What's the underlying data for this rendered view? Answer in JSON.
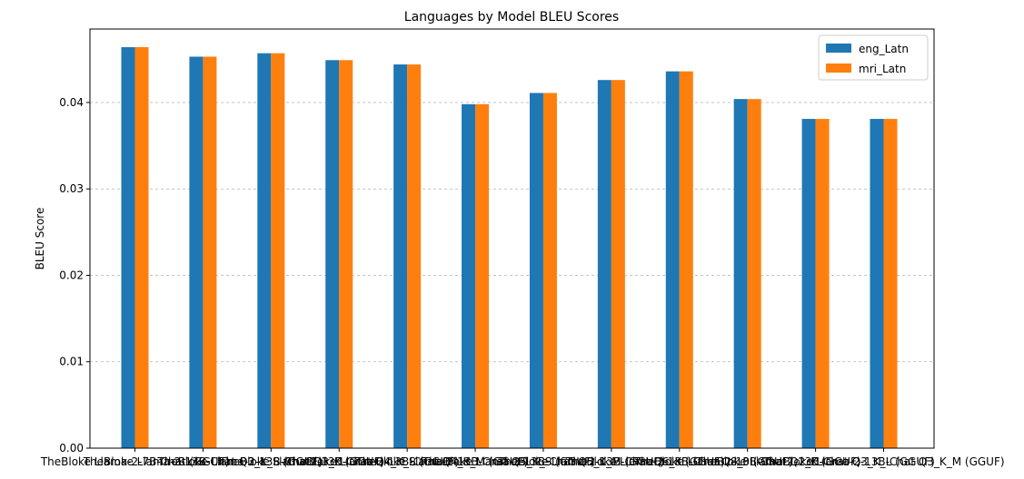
{
  "chart_data": {
    "type": "bar",
    "title": "Languages by Model BLEU Scores",
    "xlabel": "",
    "ylabel": "BLEU Score",
    "ylim": [
      0,
      0.0485
    ],
    "yticks": [
      0.0,
      0.01,
      0.02,
      0.03,
      0.04
    ],
    "ytick_labels": [
      "0.00",
      "0.01",
      "0.02",
      "0.03",
      "0.04"
    ],
    "grid": "y-dashed",
    "legend_position": "top-right",
    "categories": [
      "TheBloke Llama-2-7B-Chat (GGUF)",
      "TheBloke Llama-2-13B-Chat Q3_K_S (GGUF)",
      "TheBloke Llama-2-13B-Chat Q3_K (GGUF)",
      "TheBloke Llama-2-13B-Chat Q4_K_S (GGUF)",
      "TheBloke Llama-2-13B-Chat Q4_K_M (GGUF)",
      "TheBloke Llama-2-13B-Chat Q5_K_S (GGUF)",
      "TheBloke Llama-2-13B-Chat Q5_K_M (GGUF)",
      "TheBloke Llama-2-13B-Chat Q6_K (GGUF)",
      "TheBloke Llama-2-13B-Chat Q8_0 (GGUF)",
      "TheBloke Llama-2-13B-Chat Q2_K (GGUF)",
      "TheBloke Llama-2-13B-Chat Q3_K_L (GGUF)",
      "TheBloke Llama-2-13B-Chat Q3_K_M (GGUF)"
    ],
    "series": [
      {
        "name": "eng_Latn",
        "color": "#1f77b4",
        "values": [
          0.0464,
          0.0453,
          0.0457,
          0.0449,
          0.0444,
          0.0398,
          0.0411,
          0.0426,
          0.0436,
          0.0404,
          0.0381,
          0.0381
        ]
      },
      {
        "name": "mri_Latn",
        "color": "#ff7f0e",
        "values": [
          0.0464,
          0.0453,
          0.0457,
          0.0449,
          0.0444,
          0.0398,
          0.0411,
          0.0426,
          0.0436,
          0.0404,
          0.0381,
          0.0381
        ]
      }
    ]
  }
}
